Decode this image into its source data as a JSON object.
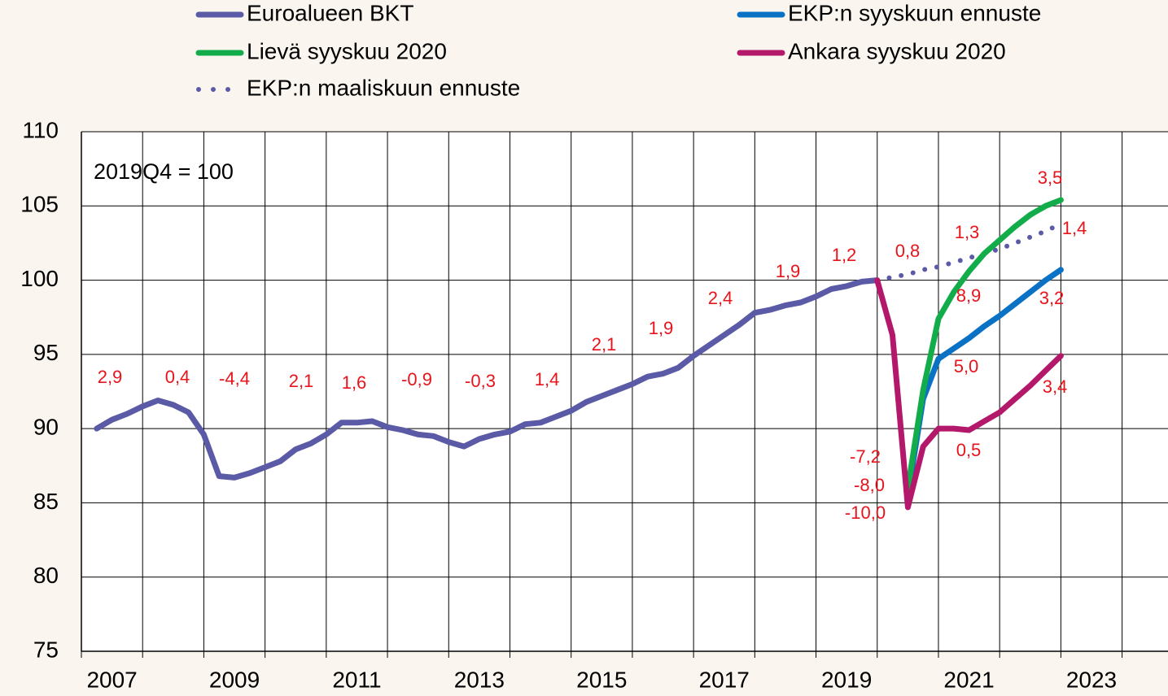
{
  "chart_data": {
    "type": "line",
    "annotation_note": "2019Q4 = 100",
    "x": [
      2007.25,
      2007.5,
      2007.75,
      2008,
      2008.25,
      2008.5,
      2008.75,
      2009,
      2009.25,
      2009.5,
      2009.75,
      2010,
      2010.25,
      2010.5,
      2010.75,
      2011,
      2011.25,
      2011.5,
      2011.75,
      2012,
      2012.25,
      2012.5,
      2012.75,
      2013,
      2013.25,
      2013.5,
      2013.75,
      2014,
      2014.25,
      2014.5,
      2014.75,
      2015,
      2015.25,
      2015.5,
      2015.75,
      2016,
      2016.25,
      2016.5,
      2016.75,
      2017,
      2017.25,
      2017.5,
      2017.75,
      2018,
      2018.25,
      2018.5,
      2018.75,
      2019,
      2019.25,
      2019.5,
      2019.75,
      2020,
      2020.25,
      2020.5,
      2020.75,
      2021,
      2021.25,
      2021.5,
      2021.75,
      2022,
      2022.25,
      2022.5,
      2022.75,
      2023
    ],
    "series": [
      {
        "name": "Euroalueen BKT",
        "color": "#5a5aa6",
        "style": "solid",
        "values": [
          90.0,
          90.6,
          91.0,
          91.5,
          91.9,
          91.6,
          91.1,
          89.6,
          86.8,
          86.7,
          87.0,
          87.4,
          87.8,
          88.6,
          89.0,
          89.6,
          90.4,
          90.4,
          90.5,
          90.1,
          89.9,
          89.6,
          89.5,
          89.1,
          88.8,
          89.3,
          89.6,
          89.8,
          90.3,
          90.4,
          90.8,
          91.2,
          91.8,
          92.2,
          92.6,
          93.0,
          93.5,
          93.7,
          94.1,
          94.9,
          95.6,
          96.3,
          97.0,
          97.8,
          98.0,
          98.3,
          98.5,
          98.9,
          99.4,
          99.6,
          99.9,
          100.0,
          null,
          null,
          null,
          null,
          null,
          null,
          null,
          null,
          null,
          null,
          null,
          null
        ]
      },
      {
        "name": "EKP:n syyskuun ennuste",
        "color": "#0a72c4",
        "style": "solid",
        "values": [
          null,
          null,
          null,
          null,
          null,
          null,
          null,
          null,
          null,
          null,
          null,
          null,
          null,
          null,
          null,
          null,
          null,
          null,
          null,
          null,
          null,
          null,
          null,
          null,
          null,
          null,
          null,
          null,
          null,
          null,
          null,
          null,
          null,
          null,
          null,
          null,
          null,
          null,
          null,
          null,
          null,
          null,
          null,
          null,
          null,
          null,
          null,
          null,
          null,
          null,
          null,
          null,
          null,
          85.5,
          92.0,
          94.7,
          95.4,
          96.1,
          96.9,
          97.6,
          98.4,
          99.2,
          100.0,
          100.7
        ]
      },
      {
        "name": "Lievä syyskuu 2020",
        "color": "#12ad4a",
        "style": "solid",
        "values": [
          null,
          null,
          null,
          null,
          null,
          null,
          null,
          null,
          null,
          null,
          null,
          null,
          null,
          null,
          null,
          null,
          null,
          null,
          null,
          null,
          null,
          null,
          null,
          null,
          null,
          null,
          null,
          null,
          null,
          null,
          null,
          null,
          null,
          null,
          null,
          null,
          null,
          null,
          null,
          null,
          null,
          null,
          null,
          null,
          null,
          null,
          null,
          null,
          null,
          null,
          null,
          null,
          null,
          86.0,
          92.6,
          97.4,
          99.2,
          100.6,
          101.8,
          102.7,
          103.6,
          104.4,
          105.0,
          105.4
        ]
      },
      {
        "name": "Ankara syyskuu 2020",
        "color": "#b3186b",
        "style": "solid",
        "values": [
          null,
          null,
          null,
          null,
          null,
          null,
          null,
          null,
          null,
          null,
          null,
          null,
          null,
          null,
          null,
          null,
          null,
          null,
          null,
          null,
          null,
          null,
          null,
          null,
          null,
          null,
          null,
          null,
          null,
          null,
          null,
          null,
          null,
          null,
          null,
          null,
          null,
          null,
          null,
          null,
          null,
          null,
          null,
          null,
          null,
          null,
          null,
          null,
          null,
          null,
          null,
          100.0,
          96.3,
          84.7,
          88.8,
          90.0,
          90.0,
          89.9,
          90.5,
          91.1,
          92.0,
          92.9,
          93.9,
          94.9
        ]
      },
      {
        "name": "EKP:n maaliskuun ennuste",
        "color": "#5a5aa6",
        "style": "dotted",
        "values": [
          null,
          null,
          null,
          null,
          null,
          null,
          null,
          null,
          null,
          null,
          null,
          null,
          null,
          null,
          null,
          null,
          null,
          null,
          null,
          null,
          null,
          null,
          null,
          null,
          null,
          null,
          null,
          null,
          null,
          null,
          null,
          null,
          null,
          null,
          null,
          null,
          null,
          null,
          null,
          null,
          null,
          null,
          null,
          null,
          null,
          null,
          null,
          null,
          null,
          null,
          null,
          100.0,
          100.2,
          100.4,
          100.7,
          100.9,
          101.2,
          101.5,
          101.8,
          102.1,
          102.5,
          102.9,
          103.3,
          103.8
        ]
      }
    ],
    "annotations": [
      "2,9",
      "0,4",
      "-4,4",
      "2,1",
      "1,6",
      "-0,9",
      "-0,3",
      "1,4",
      "2,1",
      "1,9",
      "2,4",
      "1,9",
      "1,2",
      "0,8",
      "1,3",
      "3,5",
      "1,4",
      "8,9",
      "3,2",
      "5,0",
      "3,4",
      "0,5",
      "-7,2",
      "-8,0",
      "-10,0"
    ],
    "annotation_color": "#e8141b",
    "xlim": [
      2007,
      2024.75
    ],
    "xticks": [
      2007,
      2008,
      2009,
      2010,
      2011,
      2012,
      2013,
      2014,
      2015,
      2016,
      2017,
      2018,
      2019,
      2020,
      2021,
      2022,
      2023,
      2024
    ],
    "ylim": [
      75,
      110
    ],
    "yticks": [
      75,
      80,
      85,
      90,
      95,
      100,
      105,
      110
    ],
    "grid": true
  }
}
